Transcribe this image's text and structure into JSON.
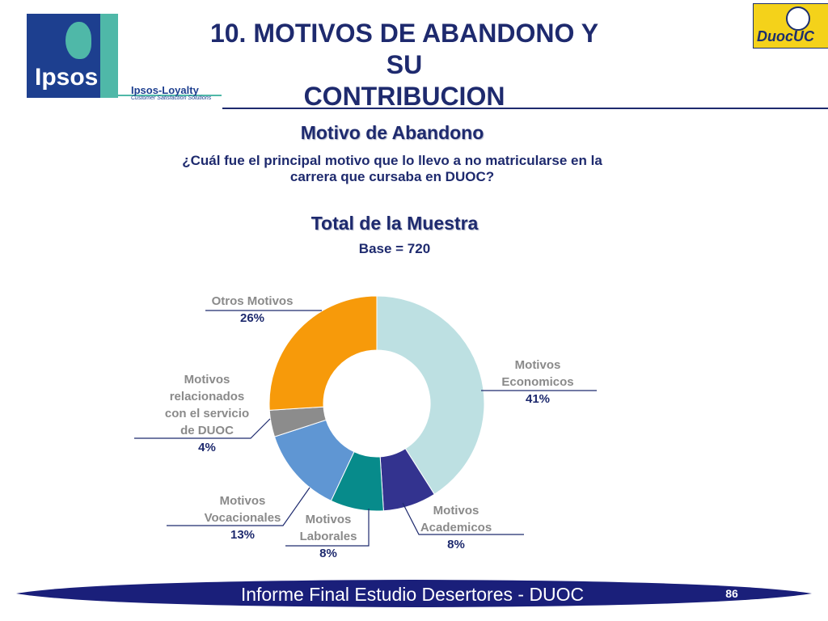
{
  "header": {
    "title_line1": "10. MOTIVOS DE ABANDONO Y SU",
    "title_line2": "CONTRIBUCION",
    "ipsos_logo_text": "Ipsos",
    "loyalty_text": "Ipsos-Loyalty",
    "loyalty_subtext": "Customer Satisfaction Solutions",
    "duoc_logo_text": "DuocUC"
  },
  "content": {
    "subtitle": "Motivo de Abandono",
    "question_line1": "¿Cuál fue el principal motivo que lo llevo a no matricularse en la",
    "question_line2": "carrera que cursaba en DUOC?",
    "sample_title": "Total de la Muestra",
    "base": "Base = 720"
  },
  "chart_data": {
    "type": "pie",
    "variant": "donut",
    "slices": [
      {
        "label_lines": [
          "Motivos",
          "Economicos"
        ],
        "value": 41,
        "value_label": "41%",
        "color": "#bde0e2"
      },
      {
        "label_lines": [
          "Motivos",
          "Academicos"
        ],
        "value": 8,
        "value_label": "8%",
        "color": "#33338f"
      },
      {
        "label_lines": [
          "Motivos",
          "Laborales"
        ],
        "value": 8,
        "value_label": "8%",
        "color": "#078b8b"
      },
      {
        "label_lines": [
          "Motivos",
          "Vocacionales"
        ],
        "value": 13,
        "value_label": "13%",
        "color": "#5f96d3"
      },
      {
        "label_lines": [
          "Motivos",
          "relacionados",
          "con el servicio",
          "de DUOC"
        ],
        "value": 4,
        "value_label": "4%",
        "color": "#8c8c8c"
      },
      {
        "label_lines": [
          "Otros Motivos"
        ],
        "value": 26,
        "value_label": "26%",
        "color": "#f79a0a"
      }
    ]
  },
  "footer": {
    "text": "Informe Final Estudio Desertores - DUOC",
    "page_number": "86"
  },
  "colors": {
    "navy": "#1e2a6e",
    "footer_bar": "#1a1f7a"
  }
}
